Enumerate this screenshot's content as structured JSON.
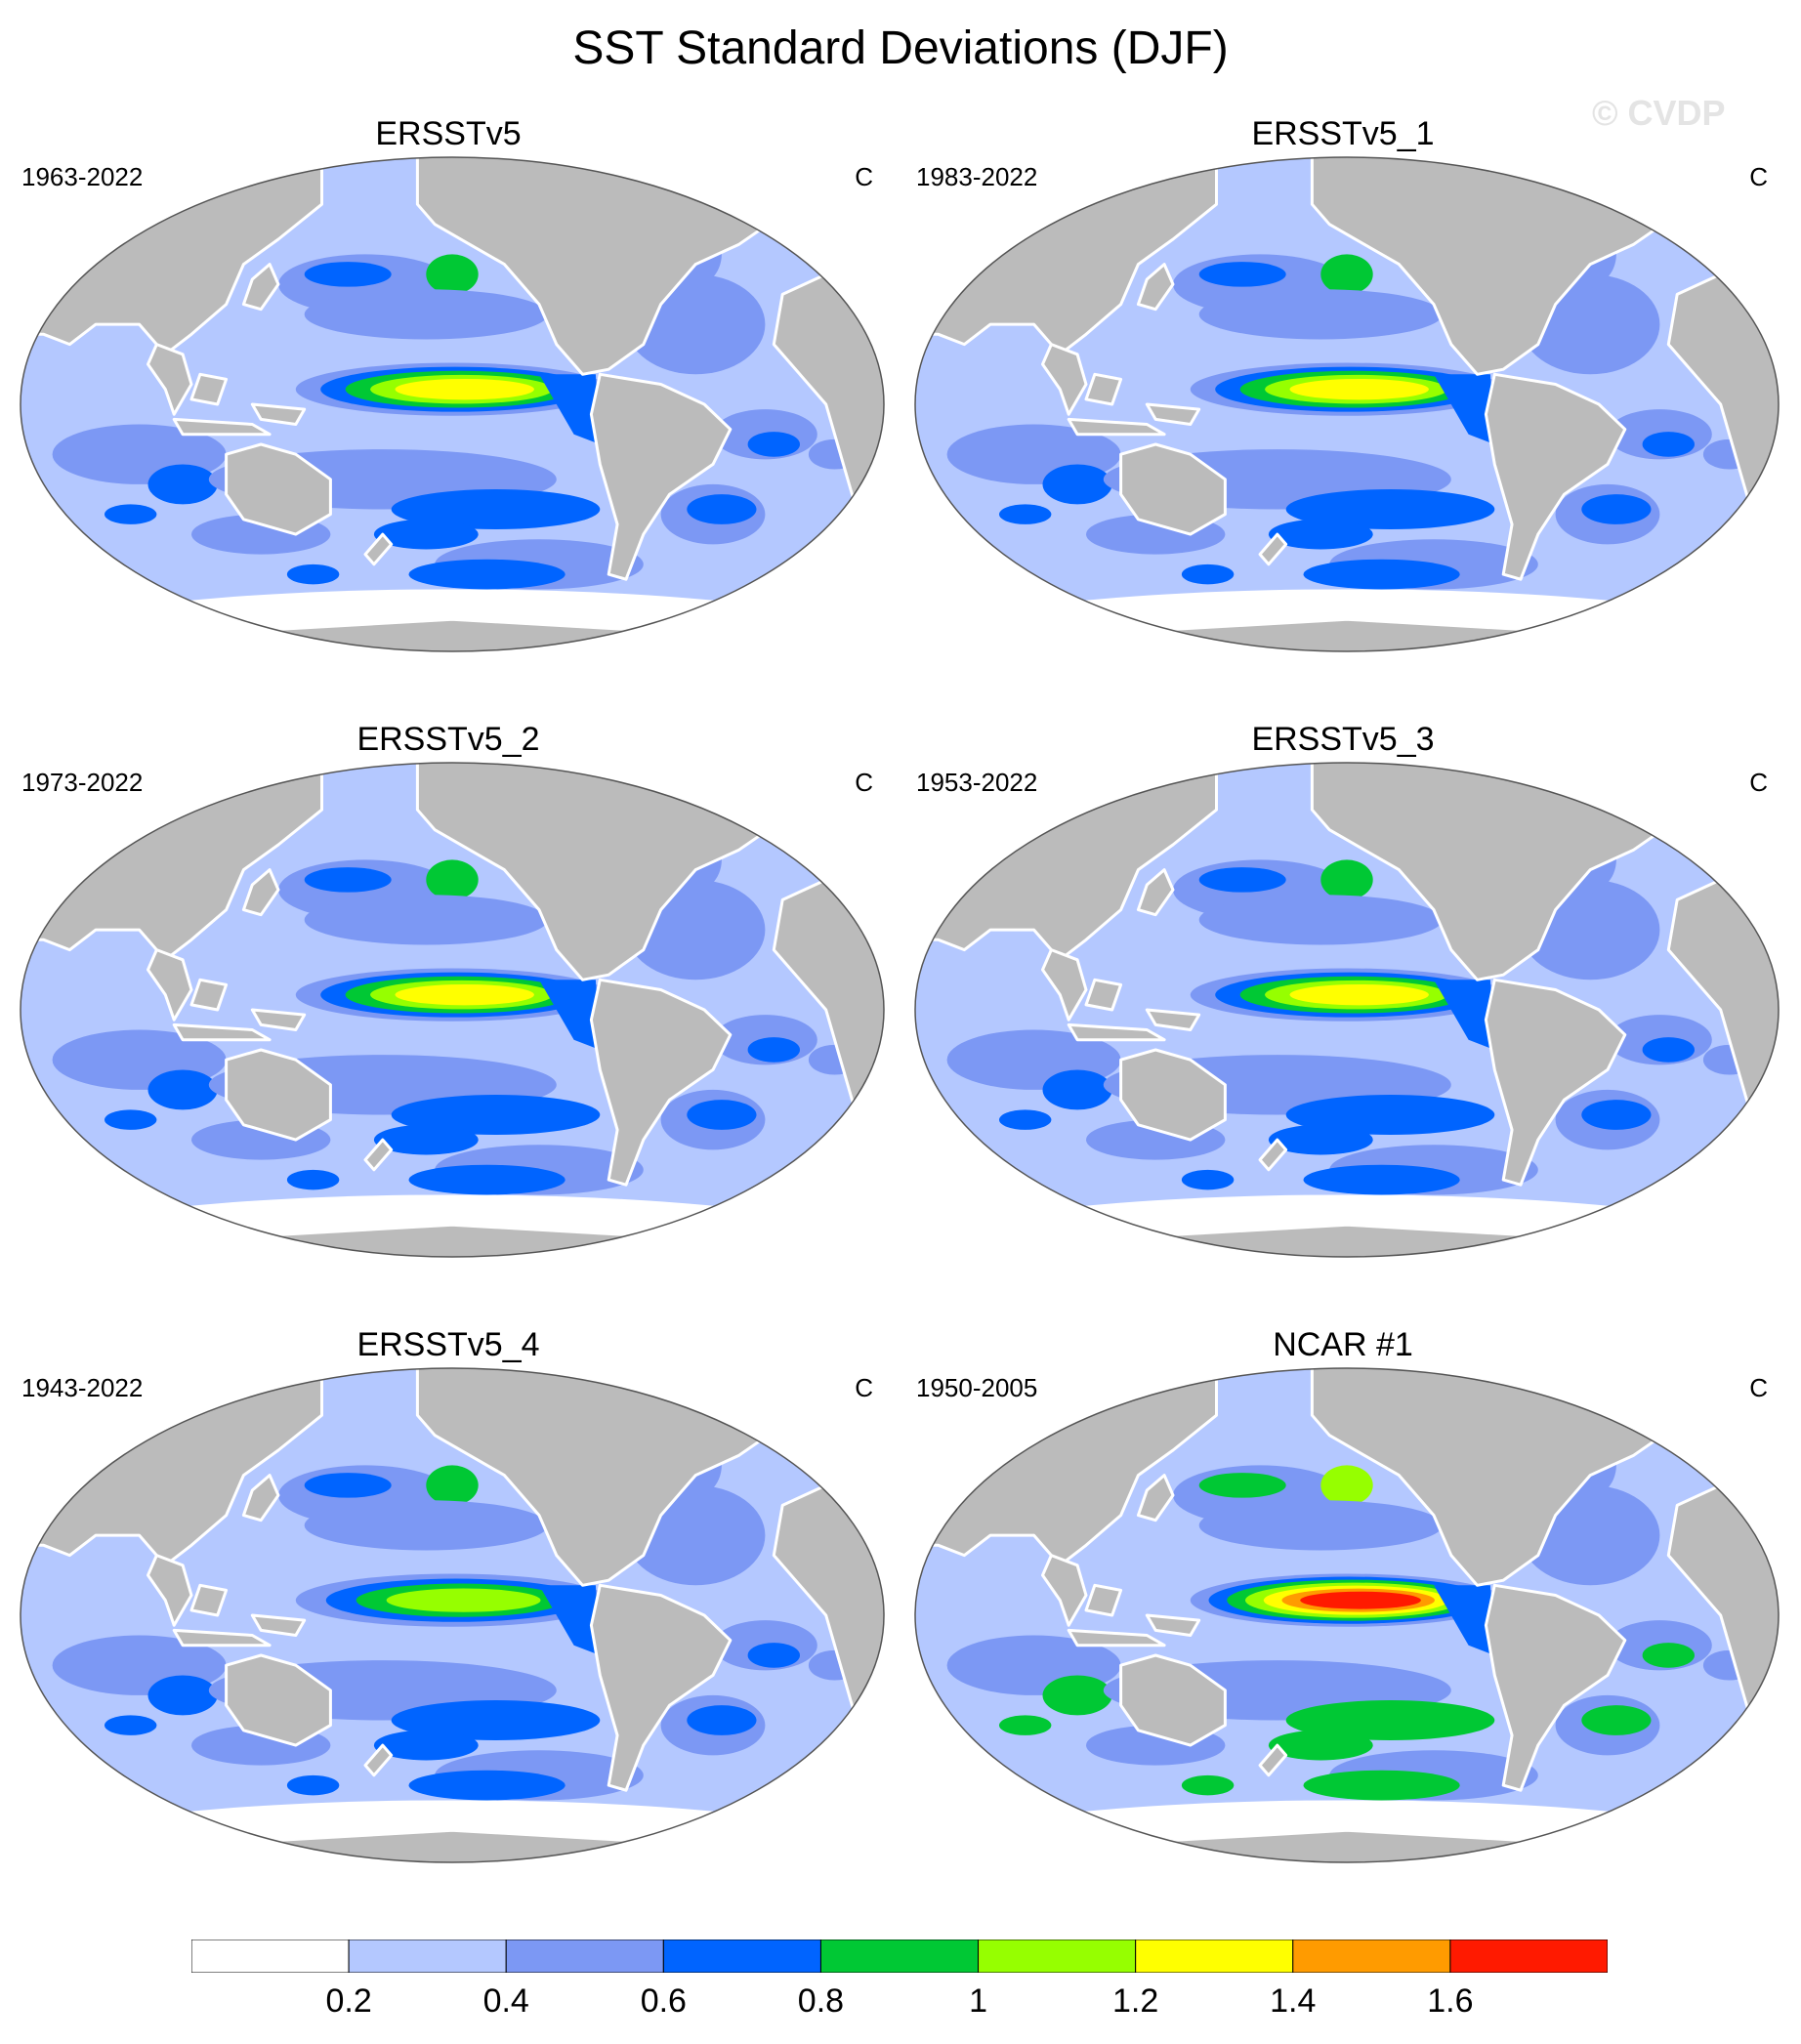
{
  "title": "SST Standard Deviations (DJF)",
  "watermark": "© CVDP",
  "colors": {
    "ocean_levels": [
      "#ffffff",
      "#b4c8ff",
      "#7c98f4",
      "#0064ff",
      "#00c834",
      "#96ff00",
      "#ffff00",
      "#ff9b00",
      "#ff1a00"
    ],
    "land": "#bbbbbb",
    "coast": "#ffffff"
  },
  "panels": [
    {
      "title": "ERSSTv5",
      "years": "1963-2022",
      "unit": "C",
      "enso_peak_level": 6,
      "extratropical_level": 3
    },
    {
      "title": "ERSSTv5_1",
      "years": "1983-2022",
      "unit": "C",
      "enso_peak_level": 6,
      "extratropical_level": 3
    },
    {
      "title": "ERSSTv5_2",
      "years": "1973-2022",
      "unit": "C",
      "enso_peak_level": 6,
      "extratropical_level": 3
    },
    {
      "title": "ERSSTv5_3",
      "years": "1953-2022",
      "unit": "C",
      "enso_peak_level": 6,
      "extratropical_level": 3
    },
    {
      "title": "ERSSTv5_4",
      "years": "1943-2022",
      "unit": "C",
      "enso_peak_level": 5,
      "extratropical_level": 3
    },
    {
      "title": "NCAR #1",
      "years": "1950-2005",
      "unit": "C",
      "enso_peak_level": 8,
      "extratropical_level": 4
    }
  ],
  "colorbar": {
    "levels": [
      0.2,
      0.4,
      0.6,
      0.8,
      1.0,
      1.2,
      1.4,
      1.6
    ],
    "labels": [
      "0.2",
      "0.4",
      "0.6",
      "0.8",
      "1",
      "1.2",
      "1.4",
      "1.6"
    ]
  }
}
